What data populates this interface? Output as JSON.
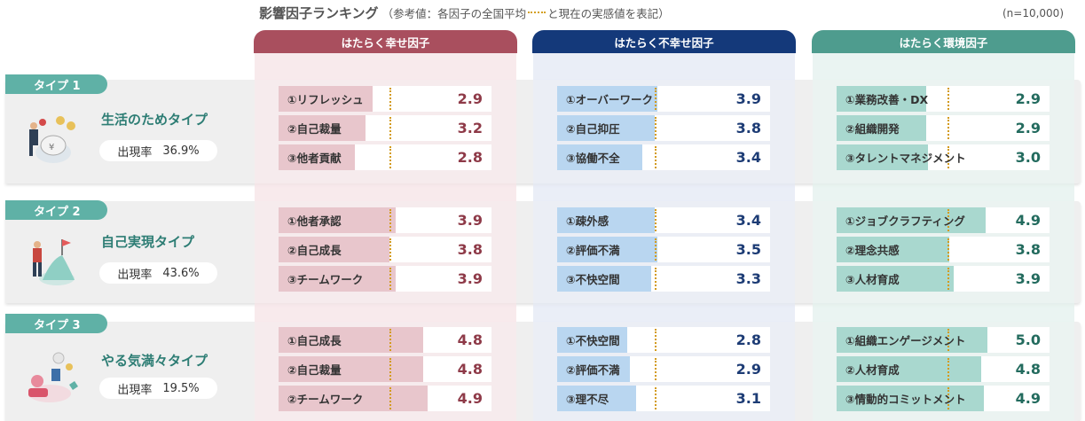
{
  "header": {
    "title": "影響因子ランキング",
    "note_prefix": "（参考値：各因子の全国平均",
    "note_suffix": "と現在の実感値を表記）",
    "sample": "(n=10,000)"
  },
  "colors": {
    "happy_header": "#a94f5e",
    "happy_bg": "#f8e9ec",
    "happy_fill": "#e8c6cc",
    "happy_value": "#8e3a48",
    "unhappy_header": "#14397a",
    "unhappy_bg": "#e9edf7",
    "unhappy_fill": "#b9d6f0",
    "unhappy_value": "#1d3c75",
    "env_header": "#4e9c8e",
    "env_bg": "#e9f4f1",
    "env_fill": "#a9d8cf",
    "env_value": "#236b5e",
    "type_badge": "#5fb1a6",
    "avg_marker": "#d39b1e"
  },
  "columns": [
    {
      "key": "happy",
      "title": "はたらく幸せ因子"
    },
    {
      "key": "unhappy",
      "title": "はたらく不幸せ因子"
    },
    {
      "key": "env",
      "title": "はたらく環境因子"
    }
  ],
  "types": [
    {
      "badge": "タイプ 1",
      "name": "生活のためタイプ",
      "rate_label": "出現率",
      "rate_value": "36.9%",
      "icon": "money-person-illustration",
      "factors": {
        "happy": [
          {
            "label": "①リフレッシュ",
            "value": "2.9",
            "fill": 0.44,
            "avg": 0.52
          },
          {
            "label": "②自己裁量",
            "value": "3.2",
            "fill": 0.41,
            "avg": 0.52
          },
          {
            "label": "③他者貢献",
            "value": "2.8",
            "fill": 0.36,
            "avg": 0.52
          }
        ],
        "unhappy": [
          {
            "label": "①オーバーワーク",
            "value": "3.9",
            "fill": 0.47,
            "avg": 0.46
          },
          {
            "label": "②自己抑圧",
            "value": "3.8",
            "fill": 0.46,
            "avg": 0.46
          },
          {
            "label": "③協働不全",
            "value": "3.4",
            "fill": 0.4,
            "avg": 0.46
          }
        ],
        "env": [
          {
            "label": "①業務改善・DX",
            "value": "2.9",
            "fill": 0.42,
            "avg": 0.52
          },
          {
            "label": "②組織開発",
            "value": "2.9",
            "fill": 0.42,
            "avg": 0.52
          },
          {
            "label": "③タレントマネジメント",
            "value": "3.0",
            "fill": 0.43,
            "avg": 0.52
          }
        ]
      }
    },
    {
      "badge": "タイプ 2",
      "name": "自己実現タイプ",
      "rate_label": "出現率",
      "rate_value": "43.6%",
      "icon": "summit-flag-illustration",
      "factors": {
        "happy": [
          {
            "label": "①他者承認",
            "value": "3.9",
            "fill": 0.55,
            "avg": 0.52
          },
          {
            "label": "②自己成長",
            "value": "3.8",
            "fill": 0.52,
            "avg": 0.52
          },
          {
            "label": "③チームワーク",
            "value": "3.9",
            "fill": 0.55,
            "avg": 0.52
          }
        ],
        "unhappy": [
          {
            "label": "①疎外感",
            "value": "3.4",
            "fill": 0.46,
            "avg": 0.46
          },
          {
            "label": "②評価不満",
            "value": "3.5",
            "fill": 0.47,
            "avg": 0.46
          },
          {
            "label": "③不快空間",
            "value": "3.3",
            "fill": 0.44,
            "avg": 0.46
          }
        ],
        "env": [
          {
            "label": "①ジョブクラフティング",
            "value": "4.9",
            "fill": 0.7,
            "avg": 0.52
          },
          {
            "label": "②理念共感",
            "value": "3.8",
            "fill": 0.53,
            "avg": 0.52
          },
          {
            "label": "③人材育成",
            "value": "3.9",
            "fill": 0.55,
            "avg": 0.52
          }
        ]
      }
    },
    {
      "badge": "タイプ 3",
      "name": "やる気満々タイプ",
      "rate_label": "出現率",
      "rate_value": "19.5%",
      "icon": "motivated-team-illustration",
      "factors": {
        "happy": [
          {
            "label": "①自己成長",
            "value": "4.8",
            "fill": 0.68,
            "avg": 0.52
          },
          {
            "label": "②自己裁量",
            "value": "4.8",
            "fill": 0.68,
            "avg": 0.52
          },
          {
            "label": "②チームワーク",
            "value": "4.9",
            "fill": 0.7,
            "avg": 0.52
          }
        ],
        "unhappy": [
          {
            "label": "①不快空間",
            "value": "2.8",
            "fill": 0.33,
            "avg": 0.46
          },
          {
            "label": "②評価不満",
            "value": "2.9",
            "fill": 0.34,
            "avg": 0.46
          },
          {
            "label": "③理不尽",
            "value": "3.1",
            "fill": 0.37,
            "avg": 0.46
          }
        ],
        "env": [
          {
            "label": "①組織エンゲージメント",
            "value": "5.0",
            "fill": 0.71,
            "avg": 0.52
          },
          {
            "label": "②人材育成",
            "value": "4.8",
            "fill": 0.68,
            "avg": 0.52
          },
          {
            "label": "③情動的コミットメント",
            "value": "4.9",
            "fill": 0.69,
            "avg": 0.52
          }
        ]
      }
    }
  ]
}
